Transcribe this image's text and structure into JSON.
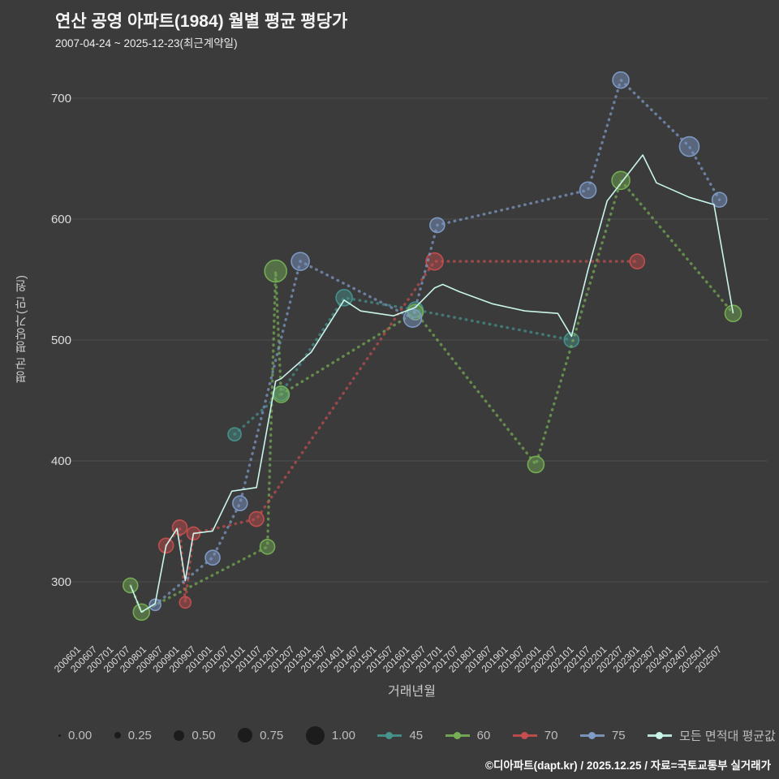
{
  "title": "연산 공영 아파트(1984) 월별 평균 평당가",
  "subtitle": "2007-04-24 ~ 2025-12-23(최근계약일)",
  "footer": "©디아파트(dapt.kr) / 2025.12.25 / 자료=국토교통부 실거래가",
  "colors": {
    "background": "#3b3b3b",
    "grid": "#4e4e4e",
    "tick_text": "#dcdcdc",
    "series_45": "#46948e",
    "series_60": "#76b054",
    "series_70": "#c74e4e",
    "series_75": "#7f9cc9",
    "series_avg": "#c9f5ea",
    "legend_dot": "#1c1c1c"
  },
  "chart_data": {
    "type": "scatter",
    "title": "연산 공영 아파트(1984) 월별 평균 평당가",
    "xlabel": "거래년월",
    "ylabel": "평균 평당가(만 원)",
    "ylim": [
      255,
      730
    ],
    "grid": "horizontal-only",
    "legend_position": "bottom",
    "y_ticks": [
      300,
      400,
      500,
      600,
      700
    ],
    "x_ticks": [
      "200601",
      "200607",
      "200701",
      "200707",
      "200801",
      "200807",
      "200901",
      "200907",
      "201001",
      "201007",
      "201101",
      "201107",
      "201201",
      "201207",
      "201301",
      "201307",
      "201401",
      "201407",
      "201501",
      "201507",
      "201601",
      "201607",
      "201701",
      "201707",
      "201801",
      "201807",
      "201901",
      "201907",
      "202001",
      "202007",
      "202101",
      "202107",
      "202201",
      "202207",
      "202301",
      "202307",
      "202401",
      "202407",
      "202501",
      "202507"
    ],
    "size_legend": [
      {
        "label": "0.00",
        "size": 0.0
      },
      {
        "label": "0.25",
        "size": 0.25
      },
      {
        "label": "0.50",
        "size": 0.5
      },
      {
        "label": "0.75",
        "size": 0.75
      },
      {
        "label": "1.00",
        "size": 1.0
      }
    ],
    "series": [
      {
        "name": "45",
        "color_key": "series_45",
        "points": [
          [
            "2010-09",
            422,
            0.45
          ],
          [
            "2012-02",
            456,
            0.55
          ],
          [
            "2014-01",
            535,
            0.65
          ],
          [
            "2016-03",
            525,
            0.6
          ],
          [
            "2020-12",
            500,
            0.55
          ]
        ]
      },
      {
        "name": "60",
        "color_key": "series_60",
        "points": [
          [
            "2007-07",
            297,
            0.55
          ],
          [
            "2007-11",
            275,
            0.65
          ],
          [
            "2011-09",
            329,
            0.55
          ],
          [
            "2011-12",
            557,
            1.0
          ],
          [
            "2012-02",
            455,
            0.65
          ],
          [
            "2016-03",
            523,
            0.6
          ],
          [
            "2019-11",
            397,
            0.65
          ],
          [
            "2022-06",
            632,
            0.75
          ],
          [
            "2025-11",
            522,
            0.65
          ]
        ]
      },
      {
        "name": "70",
        "color_key": "series_70",
        "points": [
          [
            "2008-08",
            330,
            0.55
          ],
          [
            "2009-01",
            345,
            0.55
          ],
          [
            "2009-03",
            283,
            0.35
          ],
          [
            "2009-06",
            340,
            0.45
          ],
          [
            "2011-05",
            352,
            0.55
          ],
          [
            "2016-10",
            565,
            0.7
          ],
          [
            "2022-12",
            565,
            0.55
          ]
        ]
      },
      {
        "name": "75",
        "color_key": "series_75",
        "points": [
          [
            "2008-04",
            281,
            0.35
          ],
          [
            "2010-01",
            320,
            0.55
          ],
          [
            "2010-11",
            365,
            0.55
          ],
          [
            "2012-09",
            565,
            0.75
          ],
          [
            "2016-02",
            518,
            0.75
          ],
          [
            "2016-11",
            595,
            0.55
          ],
          [
            "2021-06",
            624,
            0.65
          ],
          [
            "2022-06",
            715,
            0.65
          ],
          [
            "2024-07",
            660,
            0.85
          ],
          [
            "2025-06",
            616,
            0.55
          ]
        ]
      },
      {
        "name": "모든 면적대 평균값",
        "color_key": "series_avg",
        "line": true,
        "points": [
          [
            "2007-07",
            297
          ],
          [
            "2007-11",
            275
          ],
          [
            "2008-04",
            282
          ],
          [
            "2008-08",
            330
          ],
          [
            "2008-12",
            344
          ],
          [
            "2009-03",
            301
          ],
          [
            "2009-06",
            340
          ],
          [
            "2010-01",
            342
          ],
          [
            "2010-08",
            375
          ],
          [
            "2011-05",
            378
          ],
          [
            "2011-12",
            466
          ],
          [
            "2012-02",
            468
          ],
          [
            "2013-01",
            490
          ],
          [
            "2014-01",
            533
          ],
          [
            "2014-07",
            524
          ],
          [
            "2015-07",
            520
          ],
          [
            "2016-03",
            527
          ],
          [
            "2016-10",
            543
          ],
          [
            "2017-01",
            546
          ],
          [
            "2017-07",
            540
          ],
          [
            "2018-07",
            530
          ],
          [
            "2019-07",
            524
          ],
          [
            "2020-07",
            522
          ],
          [
            "2020-12",
            503
          ],
          [
            "2021-06",
            558
          ],
          [
            "2022-01",
            615
          ],
          [
            "2023-02",
            653
          ],
          [
            "2023-07",
            630
          ],
          [
            "2024-07",
            618
          ],
          [
            "2025-04",
            612
          ],
          [
            "2025-11",
            522
          ]
        ]
      }
    ]
  }
}
